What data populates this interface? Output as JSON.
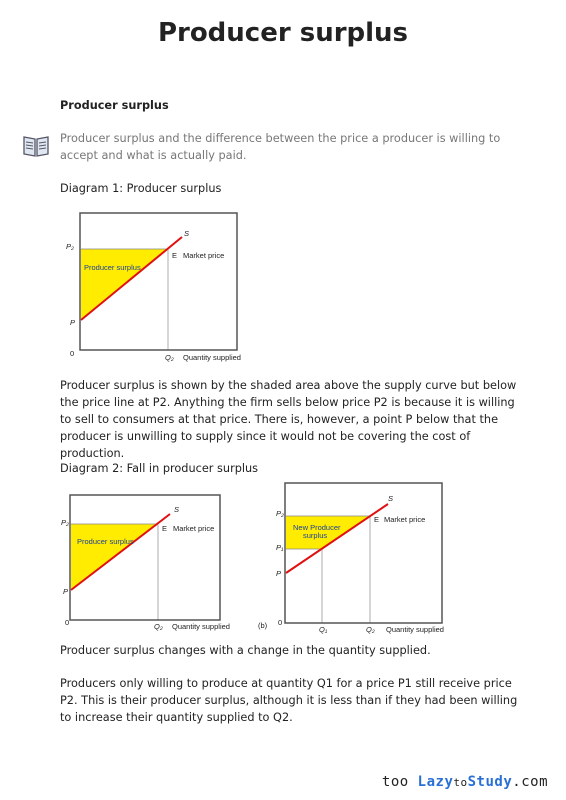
{
  "header": {
    "title": "Producer surplus"
  },
  "section": {
    "heading": "Producer surplus",
    "note": "Producer surplus and the difference between the price a producer is willing to accept and what is actually paid."
  },
  "diagram1": {
    "caption": "Diagram 1: Producer surplus",
    "labels": {
      "p2": "P₂",
      "s": "S",
      "e": "E",
      "market_price": "Market price",
      "surplus": "Producer surplus",
      "p": "P",
      "zero": "0",
      "q2": "Q₂",
      "quantity": "Quantity supplied"
    }
  },
  "paragraph1": "Producer surplus is shown by the shaded area above the supply curve but below the price line at P2. Anything the firm sells below price P2 is because it is willing to sell to consumers at that price. There is, however, a point P below that the producer is unwilling to supply since it would not be covering the cost of production.",
  "diagram2": {
    "caption": "Diagram 2: Fall in producer surplus",
    "a": {
      "p2": "P₂",
      "s": "S",
      "e": "E",
      "market_price": "Market price",
      "surplus": "Producer surplus",
      "p": "P",
      "zero": "0",
      "q2": "Q₂",
      "quantity": "Quantity supplied"
    },
    "b": {
      "tag": "(b)",
      "p2": "P₂",
      "p1": "P₁",
      "s": "S",
      "e": "E",
      "market_price": "Market price",
      "surplus": [
        "New  Producer",
        "surplus"
      ],
      "p": "P",
      "zero": "0",
      "q1": "Q₁",
      "q2": "Q₂",
      "quantity": "Quantity supplied"
    }
  },
  "paragraph2": "Producer surplus changes with a change in the quantity supplied.",
  "paragraph3": "Producers only willing to produce at quantity Q1 for a price P1 still receive price P2. This is their producer surplus, although it is less than if they had been willing to increase their quantity supplied to Q2.",
  "footer": {
    "parts": [
      "too",
      "Lazy",
      "to",
      "Study",
      ".com"
    ]
  }
}
